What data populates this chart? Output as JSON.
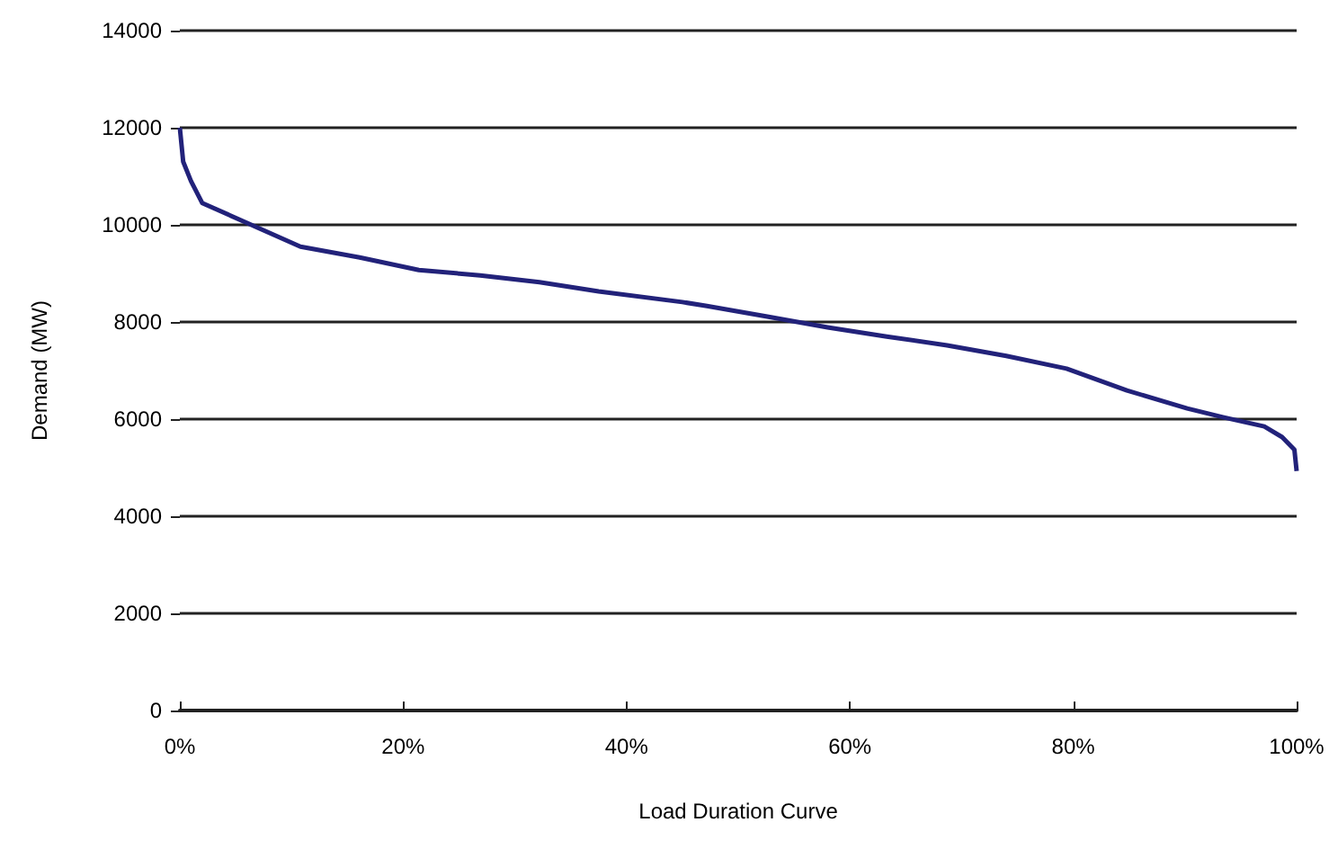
{
  "chart_data": {
    "type": "line",
    "xlabel": "Load Duration Curve",
    "ylabel": "Demand (MW)",
    "x": [
      0,
      0.3,
      1,
      2,
      6.4,
      10.8,
      16.1,
      21.4,
      26.9,
      32.2,
      37.5,
      45,
      47.2,
      52.6,
      58,
      63.3,
      68.7,
      74,
      79.4,
      84.8,
      90.2,
      93.4,
      97.1,
      98.7,
      99.8,
      100
    ],
    "series": [
      {
        "color": "#22227a",
        "values": [
          12000,
          11300,
          10900,
          10450,
          10000,
          9550,
          9330,
          9070,
          8960,
          8820,
          8630,
          8410,
          8330,
          8110,
          7890,
          7700,
          7520,
          7300,
          7040,
          6590,
          6220,
          6040,
          5850,
          5630,
          5370,
          4930
        ]
      }
    ],
    "xlim": [
      0,
      100
    ],
    "xticks": [
      {
        "value": 0,
        "label": "0%"
      },
      {
        "value": 20,
        "label": "20%"
      },
      {
        "value": 40,
        "label": "40%"
      },
      {
        "value": 60,
        "label": "60%"
      },
      {
        "value": 80,
        "label": "80%"
      },
      {
        "value": 100,
        "label": "100%"
      }
    ],
    "ylim": [
      0,
      14000
    ],
    "yticks": [
      0,
      2000,
      4000,
      6000,
      8000,
      10000,
      12000,
      14000
    ],
    "grid": "y",
    "marker": "none",
    "line_style": "solid"
  }
}
